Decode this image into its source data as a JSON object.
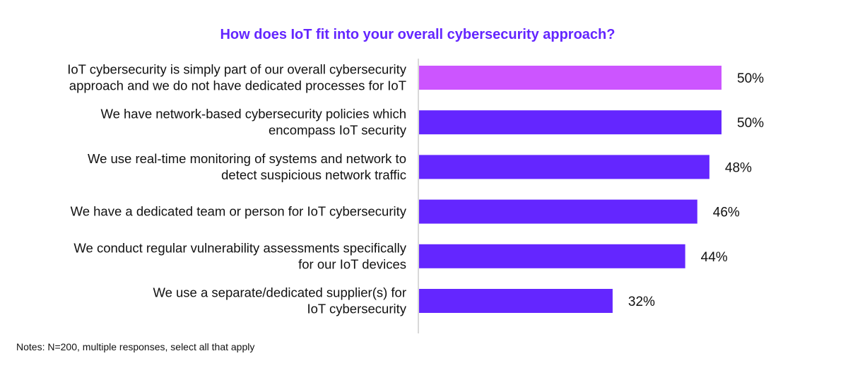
{
  "chart_data": {
    "type": "bar",
    "orientation": "horizontal",
    "title": "How does IoT fit into your overall cybersecurity approach?",
    "categories": [
      [
        "IoT cybersecurity is simply part of our overall cybersecurity",
        "approach and we do not have dedicated processes for IoT"
      ],
      [
        "We have network-based cybersecurity policies which",
        "encompass IoT security"
      ],
      [
        "We use real-time monitoring of systems and network to",
        "detect suspicious network traffic"
      ],
      [
        "We have a dedicated team or person for IoT cybersecurity"
      ],
      [
        "We conduct regular vulnerability assessments specifically",
        "for our IoT devices"
      ],
      [
        "We use a separate/dedicated supplier(s) for",
        "IoT cybersecurity"
      ]
    ],
    "values": [
      50,
      50,
      48,
      46,
      44,
      32
    ],
    "value_labels": [
      "50%",
      "50%",
      "48%",
      "46%",
      "44%",
      "32%"
    ],
    "unit": "%",
    "colors": [
      "#cc55ff",
      "#6426ff",
      "#6426ff",
      "#6426ff",
      "#6426ff",
      "#6426ff"
    ],
    "highlight_color": "#cc55ff",
    "bar_color": "#6426ff",
    "axis_color": "#cccccc",
    "xlim": [
      0,
      50
    ],
    "grid": false,
    "legend": "none",
    "note": "Notes: N=200, multiple responses, select all that apply"
  }
}
